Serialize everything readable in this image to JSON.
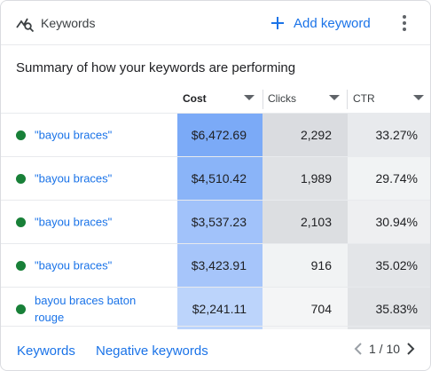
{
  "header": {
    "title": "Keywords",
    "add_label": "Add keyword",
    "icon": "keyword-search-icon"
  },
  "summary": "Summary of how your keywords are performing",
  "columns": {
    "cost": "Cost",
    "clicks": "Clicks",
    "ctr": "CTR"
  },
  "rows": [
    {
      "keyword": "\"bayou braces\"",
      "cost": "$6,472.69",
      "clicks": "2,292",
      "ctr": "33.27%",
      "cost_color": "#7baaf7",
      "clicks_color": "#dadce0",
      "ctr_color": "#e8eaed"
    },
    {
      "keyword": "\"bayou braces\"",
      "cost": "$4,510.42",
      "clicks": "1,989",
      "ctr": "29.74%",
      "cost_color": "#8ab4f8",
      "clicks_color": "#e0e2e5",
      "ctr_color": "#f1f3f4"
    },
    {
      "keyword": "\"bayou braces\"",
      "cost": "$3,537.23",
      "clicks": "2,103",
      "ctr": "30.94%",
      "cost_color": "#a1c2fa",
      "clicks_color": "#dcdee1",
      "ctr_color": "#eeeff1"
    },
    {
      "keyword": "\"bayou braces\"",
      "cost": "$3,423.91",
      "clicks": "916",
      "ctr": "35.02%",
      "cost_color": "#a6c5fa",
      "clicks_color": "#f1f3f4",
      "ctr_color": "#e3e5e8"
    },
    {
      "keyword": "bayou braces baton rouge",
      "cost": "$2,241.11",
      "clicks": "704",
      "ctr": "35.83%",
      "cost_color": "#bcd4fb",
      "clicks_color": "#f4f5f6",
      "ctr_color": "#e1e3e6"
    }
  ],
  "footer": {
    "keywords_link": "Keywords",
    "negative_link": "Negative keywords",
    "pager": "1 / 10"
  },
  "colors": {
    "accent": "#1a73e8",
    "status_dot": "#188038"
  }
}
